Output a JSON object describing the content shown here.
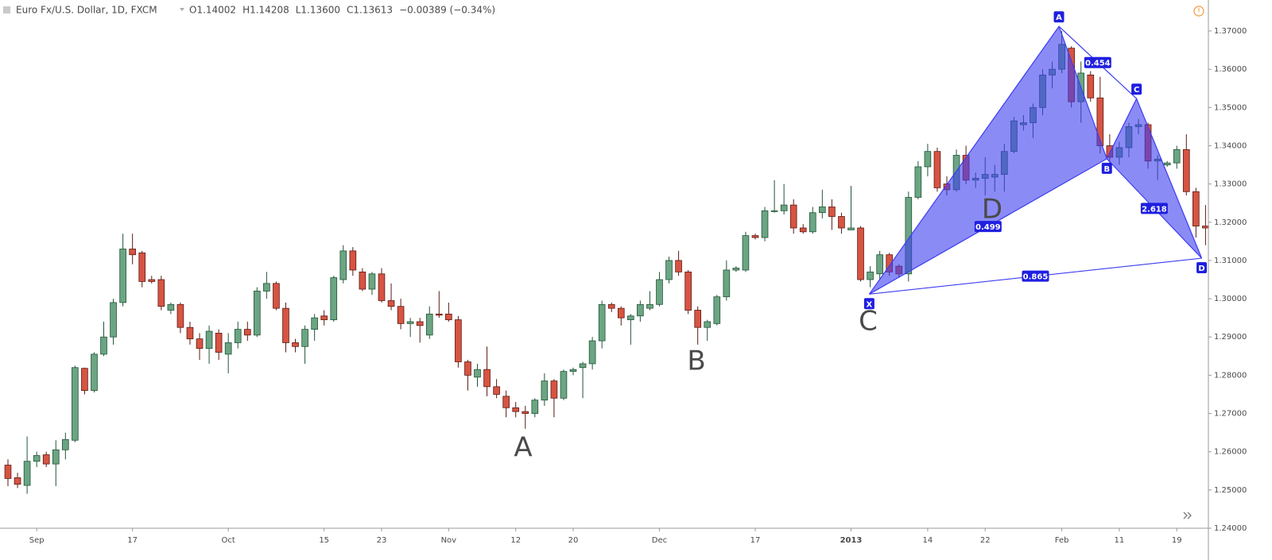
{
  "chart_data": {
    "type": "candlestick",
    "header": {
      "symbol": "Euro Fx/U.S. Dollar, 1D, FXCM",
      "quote": [
        "O1.14002",
        "H1.14208",
        "L1.13600",
        "C1.13613",
        "−0.00389 (−0.34%)"
      ]
    },
    "up_color": "#6ba583",
    "up_border": "#225437",
    "down_color": "#d75442",
    "down_border": "#5b1a13",
    "grid": true,
    "xlim": [
      -0.83,
      125.3
    ],
    "ylim": [
      1.24,
      1.3781
    ],
    "xticks": [
      {
        "value": 3,
        "label": "Sep"
      },
      {
        "value": 13,
        "label": "17"
      },
      {
        "value": 23,
        "label": "Oct"
      },
      {
        "value": 33,
        "label": "15"
      },
      {
        "value": 39,
        "label": "23"
      },
      {
        "value": 46,
        "label": "Nov"
      },
      {
        "value": 53,
        "label": "12"
      },
      {
        "value": 59,
        "label": "20"
      },
      {
        "value": 68,
        "label": "Dec"
      },
      {
        "value": 78,
        "label": "17"
      },
      {
        "value": 88,
        "label": "2013"
      },
      {
        "value": 96,
        "label": "14"
      },
      {
        "value": 102,
        "label": "22"
      },
      {
        "value": 110,
        "label": "Feb"
      },
      {
        "value": 116,
        "label": "11"
      },
      {
        "value": 122,
        "label": "19"
      }
    ],
    "yticks": [
      {
        "value": 1.24,
        "label": "1.24000"
      },
      {
        "value": 1.25,
        "label": "1.25000"
      },
      {
        "value": 1.26,
        "label": "1.26000"
      },
      {
        "value": 1.27,
        "label": "1.27000"
      },
      {
        "value": 1.28,
        "label": "1.28000"
      },
      {
        "value": 1.29,
        "label": "1.29000"
      },
      {
        "value": 1.3,
        "label": "1.30000"
      },
      {
        "value": 1.31,
        "label": "1.31000"
      },
      {
        "value": 1.32,
        "label": "1.32000"
      },
      {
        "value": 1.33,
        "label": "1.33000"
      },
      {
        "value": 1.34,
        "label": "1.34000"
      },
      {
        "value": 1.35,
        "label": "1.35000"
      },
      {
        "value": 1.36,
        "label": "1.36000"
      },
      {
        "value": 1.37,
        "label": "1.37000"
      }
    ],
    "open": [
      1.2565,
      1.2532,
      1.2512,
      1.2575,
      1.2592,
      1.2568,
      1.2605,
      1.263,
      1.2818,
      1.276,
      1.2855,
      1.29,
      1.299,
      1.313,
      1.312,
      1.305,
      1.305,
      1.297,
      1.2985,
      1.2925,
      1.2895,
      1.287,
      1.291,
      1.2855,
      1.2885,
      1.292,
      1.2905,
      1.302,
      1.304,
      1.2975,
      1.2885,
      1.2875,
      1.292,
      1.2955,
      1.2945,
      1.305,
      1.3125,
      1.307,
      1.3025,
      1.3065,
      1.2995,
      1.298,
      1.2935,
      1.294,
      1.2905,
      1.296,
      1.296,
      1.2945,
      1.2835,
      1.2795,
      1.2815,
      1.277,
      1.2745,
      1.2715,
      1.2705,
      1.27,
      1.2735,
      1.2785,
      1.274,
      1.281,
      1.282,
      1.283,
      1.289,
      1.2985,
      1.2975,
      1.2945,
      1.2955,
      1.2975,
      1.2985,
      1.305,
      1.31,
      1.307,
      1.297,
      1.2925,
      1.2935,
      1.3005,
      1.3075,
      1.3075,
      1.3165,
      1.316,
      1.3228,
      1.323,
      1.3245,
      1.3185,
      1.3175,
      1.3225,
      1.324,
      1.3215,
      1.318,
      1.3185,
      1.305,
      1.3065,
      1.3115,
      1.3085,
      1.3065,
      1.3265,
      1.3345,
      1.3385,
      1.33,
      1.3285,
      1.3375,
      1.331,
      1.3315,
      1.3318,
      1.3325,
      1.3385,
      1.3455,
      1.346,
      1.35,
      1.3585,
      1.36,
      1.3655,
      1.3515,
      1.3585,
      1.3525,
      1.34,
      1.337,
      1.3395,
      1.345,
      1.3455,
      1.336,
      1.335,
      1.3355,
      1.339,
      1.328,
      1.319
    ],
    "high": [
      1.258,
      1.2545,
      1.264,
      1.26,
      1.26,
      1.263,
      1.265,
      1.2825,
      1.282,
      1.286,
      1.294,
      1.3,
      1.317,
      1.317,
      1.3125,
      1.306,
      1.306,
      1.299,
      1.299,
      1.294,
      1.291,
      1.293,
      1.292,
      1.291,
      1.294,
      1.294,
      1.303,
      1.307,
      1.3045,
      1.299,
      1.2895,
      1.293,
      1.296,
      1.297,
      1.306,
      1.314,
      1.3135,
      1.308,
      1.307,
      1.308,
      1.304,
      1.3,
      1.295,
      1.295,
      1.298,
      1.302,
      1.299,
      1.2955,
      1.284,
      1.283,
      1.2875,
      1.279,
      1.276,
      1.273,
      1.272,
      1.274,
      1.2805,
      1.279,
      1.2815,
      1.282,
      1.2835,
      1.29,
      1.2995,
      1.299,
      1.298,
      1.296,
      1.2995,
      1.302,
      1.307,
      1.311,
      1.3125,
      1.3075,
      1.298,
      1.2945,
      1.301,
      1.31,
      1.3085,
      1.3175,
      1.317,
      1.324,
      1.331,
      1.33,
      1.326,
      1.3195,
      1.324,
      1.3285,
      1.326,
      1.3225,
      1.3295,
      1.319,
      1.3085,
      1.3125,
      1.312,
      1.309,
      1.328,
      1.336,
      1.3405,
      1.3395,
      1.332,
      1.339,
      1.34,
      1.333,
      1.337,
      1.335,
      1.3405,
      1.3475,
      1.348,
      1.351,
      1.36,
      1.362,
      1.37,
      1.366,
      1.362,
      1.3595,
      1.358,
      1.343,
      1.341,
      1.346,
      1.347,
      1.346,
      1.3375,
      1.336,
      1.34,
      1.343,
      1.329,
      1.3245
    ],
    "low": [
      1.251,
      1.2505,
      1.249,
      1.256,
      1.256,
      1.251,
      1.258,
      1.2625,
      1.275,
      1.2755,
      1.285,
      1.288,
      1.298,
      1.309,
      1.303,
      1.304,
      1.297,
      1.296,
      1.291,
      1.288,
      1.284,
      1.283,
      1.284,
      1.2805,
      1.287,
      1.289,
      1.29,
      1.3,
      1.297,
      1.286,
      1.286,
      1.283,
      1.289,
      1.293,
      1.294,
      1.304,
      1.306,
      1.302,
      1.301,
      1.299,
      1.297,
      1.292,
      1.29,
      1.2885,
      1.2895,
      1.295,
      1.294,
      1.282,
      1.276,
      1.277,
      1.2745,
      1.274,
      1.269,
      1.269,
      1.266,
      1.269,
      1.272,
      1.269,
      1.2735,
      1.28,
      1.274,
      1.2815,
      1.287,
      1.2965,
      1.293,
      1.288,
      1.294,
      1.297,
      1.298,
      1.304,
      1.306,
      1.296,
      1.288,
      1.289,
      1.293,
      1.2995,
      1.307,
      1.307,
      1.3155,
      1.315,
      1.3225,
      1.322,
      1.317,
      1.317,
      1.317,
      1.321,
      1.318,
      1.317,
      1.318,
      1.3045,
      1.303,
      1.305,
      1.306,
      1.3055,
      1.3045,
      1.326,
      1.332,
      1.328,
      1.327,
      1.328,
      1.33,
      1.329,
      1.327,
      1.328,
      1.328,
      1.338,
      1.344,
      1.342,
      1.348,
      1.355,
      1.359,
      1.35,
      1.346,
      1.3515,
      1.338,
      1.335,
      1.335,
      1.337,
      1.343,
      1.334,
      1.331,
      1.3345,
      1.334,
      1.327,
      1.316,
      1.314
    ],
    "close": [
      1.253,
      1.2515,
      1.2575,
      1.259,
      1.2568,
      1.2605,
      1.2632,
      1.282,
      1.276,
      1.2855,
      1.29,
      1.299,
      1.313,
      1.3115,
      1.3045,
      1.3045,
      1.298,
      1.2985,
      1.2925,
      1.2895,
      1.287,
      1.2915,
      1.286,
      1.2885,
      1.292,
      1.2905,
      1.302,
      1.304,
      1.2975,
      1.2885,
      1.2875,
      1.292,
      1.295,
      1.2945,
      1.3055,
      1.3125,
      1.3075,
      1.3025,
      1.3065,
      1.2995,
      1.298,
      1.2935,
      1.294,
      1.293,
      1.296,
      1.2957,
      1.2945,
      1.2835,
      1.28,
      1.2815,
      1.277,
      1.275,
      1.2715,
      1.2705,
      1.27,
      1.2735,
      1.2785,
      1.274,
      1.281,
      1.2815,
      1.283,
      1.289,
      1.2985,
      1.2975,
      1.295,
      1.2955,
      1.2985,
      1.2985,
      1.305,
      1.31,
      1.307,
      1.297,
      1.2925,
      1.294,
      1.3005,
      1.3075,
      1.308,
      1.3165,
      1.316,
      1.323,
      1.323,
      1.3245,
      1.3185,
      1.3175,
      1.3225,
      1.324,
      1.3215,
      1.3185,
      1.3185,
      1.305,
      1.307,
      1.3115,
      1.307,
      1.3065,
      1.3265,
      1.3345,
      1.3385,
      1.329,
      1.3285,
      1.3375,
      1.331,
      1.3315,
      1.3325,
      1.3325,
      1.3385,
      1.3465,
      1.346,
      1.35,
      1.3585,
      1.36,
      1.3665,
      1.3515,
      1.359,
      1.3525,
      1.34,
      1.337,
      1.3395,
      1.345,
      1.3455,
      1.336,
      1.3365,
      1.3355,
      1.339,
      1.328,
      1.319,
      1.3185
    ],
    "annotations": [
      "A",
      "B",
      "C",
      "D"
    ],
    "pattern": {
      "color": "#3d3df0",
      "points": [
        {
          "label": "X",
          "x": 89.9,
          "y": 1.3012
        },
        {
          "label": "A",
          "x": 109.7,
          "y": 1.3712
        },
        {
          "label": "B",
          "x": 114.7,
          "y": 1.3366
        },
        {
          "label": "C",
          "x": 117.8,
          "y": 1.3523
        },
        {
          "label": "D",
          "x": 124.6,
          "y": 1.3106
        }
      ],
      "ratios": [
        0.454,
        0.499,
        2.618,
        0.865
      ]
    }
  }
}
